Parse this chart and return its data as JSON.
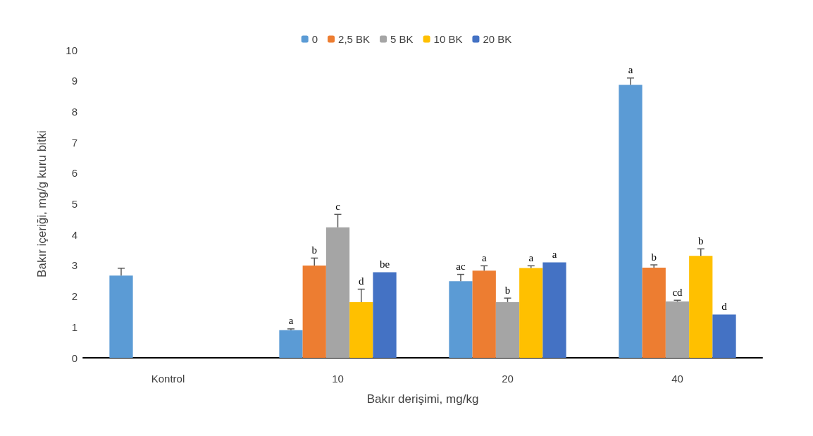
{
  "chart_data": {
    "type": "bar",
    "xlabel": "Bakır derişimi, mg/kg",
    "ylabel": "Bakır içeriği, mg/g kuru bitki",
    "categories": [
      "Kontrol",
      "10",
      "20",
      "40"
    ],
    "series": [
      {
        "name": "0",
        "color": "#5b9bd5",
        "values": [
          2.67,
          0.9,
          2.49,
          8.87
        ],
        "errors": [
          [
            2.67,
            2.91
          ],
          [
            0.9,
            0.94
          ],
          [
            2.49,
            2.71
          ],
          [
            8.87,
            9.09
          ]
        ],
        "value_labels": [
          null,
          "a",
          "ac",
          "a"
        ]
      },
      {
        "name": "2,5 BK",
        "color": "#ed7d31",
        "values": [
          null,
          3.0,
          2.83,
          2.93
        ],
        "errors": [
          null,
          [
            3.0,
            3.24
          ],
          [
            2.83,
            2.99
          ],
          [
            2.93,
            3.02
          ]
        ],
        "value_labels": [
          null,
          "b",
          "a",
          "b"
        ]
      },
      {
        "name": "5 BK",
        "color": "#a5a5a5",
        "values": [
          null,
          4.24,
          1.81,
          1.83
        ],
        "errors": [
          null,
          [
            4.24,
            4.66
          ],
          [
            1.81,
            1.94
          ],
          [
            1.83,
            1.87
          ]
        ],
        "value_labels": [
          null,
          "c",
          "b",
          "cd"
        ]
      },
      {
        "name": "10 BK",
        "color": "#ffc000",
        "values": [
          null,
          1.81,
          2.92,
          3.31
        ],
        "errors": [
          null,
          [
            1.81,
            2.23
          ],
          [
            2.92,
            2.99
          ],
          [
            3.31,
            3.54
          ]
        ],
        "value_labels": [
          null,
          "d",
          "a",
          "b"
        ]
      },
      {
        "name": "20 BK",
        "color": "#4472c4",
        "values": [
          null,
          2.78,
          3.1,
          1.41
        ],
        "errors": [
          null,
          null,
          null,
          null
        ],
        "value_labels": [
          null,
          "be",
          "a",
          "d"
        ]
      }
    ],
    "ylim": [
      0,
      10
    ],
    "yticks": [
      0,
      1,
      2,
      3,
      4,
      5,
      6,
      7,
      8,
      9,
      10
    ],
    "grid": false,
    "legend": "top"
  }
}
